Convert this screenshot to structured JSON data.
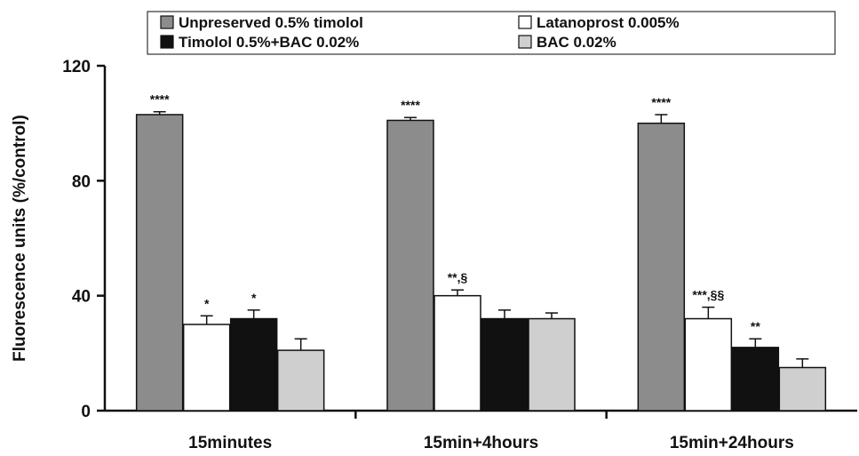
{
  "chart_data": {
    "type": "bar",
    "title": "",
    "xlabel": "",
    "ylabel": "Fluorescence units (%/control)",
    "ylim": [
      0,
      120
    ],
    "yticks": [
      "0",
      "40",
      "80",
      "120"
    ],
    "grid": false,
    "legend_position": "top",
    "categories": [
      "15minutes",
      "15min+4hours",
      "15min+24hours"
    ],
    "series": [
      {
        "name": "Unpreserved 0.5% timolol",
        "color": "#8c8c8c",
        "values": [
          103,
          101,
          100
        ],
        "errors": [
          1,
          1,
          3
        ],
        "annotations": [
          "****",
          "****",
          "****"
        ]
      },
      {
        "name": "Latanoprost 0.005%",
        "color": "#ffffff",
        "values": [
          30,
          40,
          32
        ],
        "errors": [
          3,
          2,
          4
        ],
        "annotations": [
          "*",
          "**,§",
          "***,§§"
        ]
      },
      {
        "name": "Timolol 0.5%+BAC 0.02%",
        "color": "#111111",
        "values": [
          32,
          32,
          22
        ],
        "errors": [
          3,
          3,
          3
        ],
        "annotations": [
          "*",
          "",
          "**"
        ]
      },
      {
        "name": "BAC 0.02%",
        "color": "#cfcfcf",
        "values": [
          21,
          32,
          15
        ],
        "errors": [
          4,
          2,
          3
        ],
        "annotations": [
          "",
          "",
          ""
        ]
      }
    ]
  }
}
